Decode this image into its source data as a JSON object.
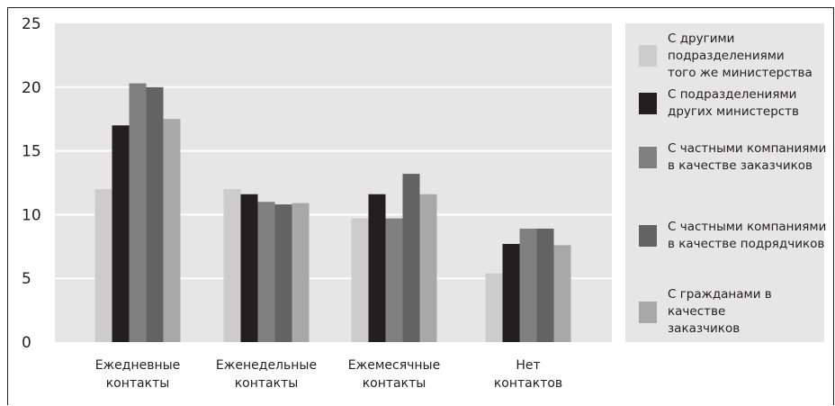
{
  "chart_data": {
    "type": "bar",
    "categories": [
      [
        "Ежедневные",
        "контакты"
      ],
      [
        "Еженедельные",
        "контакты"
      ],
      [
        "Ежемесячные",
        "контакты"
      ],
      [
        "Нет",
        "контактов"
      ]
    ],
    "series": [
      {
        "name": "С другими подразделениями того же министерства",
        "color": "#cccccc",
        "values": [
          12.0,
          12.0,
          9.7,
          5.4
        ]
      },
      {
        "name": "С подразделениями других министерств",
        "color": "#231f20",
        "values": [
          17.0,
          11.6,
          11.6,
          7.7
        ]
      },
      {
        "name": "С частными компаниями в качестве заказчиков",
        "color": "#808080",
        "values": [
          20.3,
          11.0,
          9.7,
          8.9
        ]
      },
      {
        "name": "С частными компаниями в качестве подрядчиков",
        "color": "#636363",
        "values": [
          20.0,
          10.8,
          13.2,
          8.9
        ]
      },
      {
        "name": "С гражданами в качестве заказчиков",
        "color": "#a8a8a8",
        "values": [
          17.5,
          10.9,
          11.6,
          7.6
        ]
      }
    ],
    "ylim": [
      0,
      25
    ],
    "yticks": [
      "0",
      "5",
      "10",
      "15",
      "20",
      "25"
    ],
    "grid": true,
    "legend_position": "right"
  },
  "legend": {
    "items": [
      {
        "lines": [
          "С другими",
          "подразделениями",
          "того же министерства"
        ]
      },
      {
        "lines": [
          "С подразделениями",
          "других министерств"
        ]
      },
      {
        "lines": [
          "С частными компаниями",
          "в качестве заказчиков"
        ]
      },
      {
        "lines": [
          "С частными компаниями",
          "в качестве подрядчиков"
        ]
      },
      {
        "lines": [
          "С гражданами в качестве",
          "заказчиков"
        ]
      }
    ]
  }
}
